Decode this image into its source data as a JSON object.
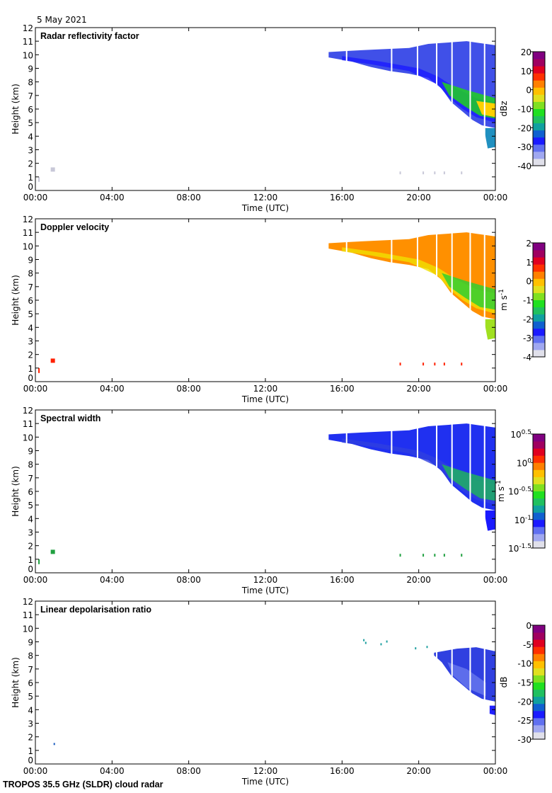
{
  "header": {
    "date": "5 May 2021"
  },
  "footer": {
    "instrument": "TROPOS 35.5 GHz (SLDR) cloud radar"
  },
  "chart_data": [
    {
      "type": "heatmap",
      "title": "Radar reflectivity factor",
      "xlabel": "Time (UTC)",
      "ylabel": "Height (km)",
      "xlim": [
        0,
        24
      ],
      "ylim": [
        0,
        12
      ],
      "xticks": [
        "00:00",
        "04:00",
        "08:00",
        "12:00",
        "16:00",
        "20:00",
        "00:00"
      ],
      "yticks": [
        "0",
        "1",
        "2",
        "3",
        "4",
        "5",
        "6",
        "7",
        "8",
        "9",
        "10",
        "11",
        "12"
      ],
      "colorbar": {
        "label": "dBz",
        "range": [
          -40,
          20
        ],
        "ticks": [
          "20",
          "10",
          "0",
          "-10",
          "-20",
          "-30",
          "-40"
        ]
      },
      "cloud_fill": [
        "#4050e8",
        "#1a1aff",
        "#2090c0",
        "#20d020",
        "#ffd000"
      ],
      "precip_echo": "#c8c8d8"
    },
    {
      "type": "heatmap",
      "title": "Doppler velocity",
      "xlabel": "Time (UTC)",
      "ylabel": "Height (km)",
      "xlim": [
        0,
        24
      ],
      "ylim": [
        0,
        12
      ],
      "xticks": [
        "00:00",
        "04:00",
        "08:00",
        "12:00",
        "16:00",
        "20:00",
        "00:00"
      ],
      "yticks": [
        "0",
        "1",
        "2",
        "3",
        "4",
        "5",
        "6",
        "7",
        "8",
        "9",
        "10",
        "11",
        "12"
      ],
      "colorbar": {
        "label": "m s-1",
        "range": [
          -4,
          2
        ],
        "ticks": [
          "2",
          "1",
          "0",
          "-1",
          "-2",
          "-3",
          "-4"
        ]
      },
      "cloud_fill": [
        "#ff9000",
        "#f0e000",
        "#a0e020",
        "#30d030",
        "#ff6000"
      ],
      "precip_echo": "#ff2000"
    },
    {
      "type": "heatmap",
      "title": "Spectral width",
      "xlabel": "Time (UTC)",
      "ylabel": "Height (km)",
      "xlim": [
        0,
        24
      ],
      "ylim": [
        0,
        12
      ],
      "xticks": [
        "00:00",
        "04:00",
        "08:00",
        "12:00",
        "16:00",
        "20:00",
        "00:00"
      ],
      "yticks": [
        "0",
        "1",
        "2",
        "3",
        "4",
        "5",
        "6",
        "7",
        "8",
        "9",
        "10",
        "11",
        "12"
      ],
      "colorbar": {
        "label": "m s-1",
        "range": [
          "10^-1.5",
          "10^0.5"
        ],
        "ticks": [
          "10^0.5",
          "10^0",
          "10^-0.5",
          "10^-1",
          "10^-1.5"
        ]
      },
      "cloud_fill": [
        "#2030f0",
        "#3040e0",
        "#1a1aff",
        "#20b060",
        "#40e040"
      ],
      "precip_echo": "#20a040"
    },
    {
      "type": "heatmap",
      "title": "Linear depolarisation ratio",
      "xlabel": "Time (UTC)",
      "ylabel": "Height (km)",
      "xlim": [
        0,
        24
      ],
      "ylim": [
        0,
        12
      ],
      "xticks": [
        "00:00",
        "04:00",
        "08:00",
        "12:00",
        "16:00",
        "20:00",
        "00:00"
      ],
      "yticks": [
        "0",
        "1",
        "2",
        "3",
        "4",
        "5",
        "6",
        "7",
        "8",
        "9",
        "10",
        "11",
        "12"
      ],
      "colorbar": {
        "label": "dB",
        "range": [
          -30,
          0
        ],
        "ticks": [
          "0",
          "-5",
          "-10",
          "-15",
          "-20",
          "-25",
          "-30"
        ]
      },
      "cloud_fill": [
        "#3040e0",
        "#5060f0",
        "#2020ff",
        "#7080f0",
        "#20a0a0"
      ],
      "precip_echo": "#2060c0"
    }
  ],
  "cloud": {
    "start_hour": 15.3,
    "top_km": [
      [
        15.3,
        10.2
      ],
      [
        16.5,
        10.3
      ],
      [
        18,
        10.4
      ],
      [
        19.5,
        10.5
      ],
      [
        20.5,
        10.8
      ],
      [
        21.5,
        10.9
      ],
      [
        22.5,
        11
      ],
      [
        23,
        10.9
      ],
      [
        24,
        10.7
      ]
    ],
    "base_km": [
      [
        15.3,
        9.8
      ],
      [
        16.5,
        9.5
      ],
      [
        17.5,
        9.1
      ],
      [
        18.5,
        8.8
      ],
      [
        19.5,
        8.6
      ],
      [
        20.5,
        8.3
      ],
      [
        21.2,
        7.5
      ],
      [
        21.7,
        6.5
      ],
      [
        22.3,
        5.8
      ],
      [
        22.8,
        5.2
      ],
      [
        23.3,
        4.8
      ],
      [
        24,
        4.6
      ]
    ],
    "gaps_hours": [
      16.2,
      18.55,
      19.9,
      20.9,
      21.7,
      22.65,
      23.4
    ],
    "lower_patch_km": [
      [
        23.4,
        4.6
      ],
      [
        24,
        4.6
      ],
      [
        24,
        3.2
      ],
      [
        23.6,
        3.1
      ]
    ]
  },
  "colormap": [
    "#e0e0ea",
    "#a0a8f0",
    "#6070f0",
    "#1a1aff",
    "#1060d0",
    "#10a0a0",
    "#20c060",
    "#20e020",
    "#80e020",
    "#e0e020",
    "#ffc000",
    "#ff8000",
    "#ff3000",
    "#e00020",
    "#a00060",
    "#800080"
  ]
}
